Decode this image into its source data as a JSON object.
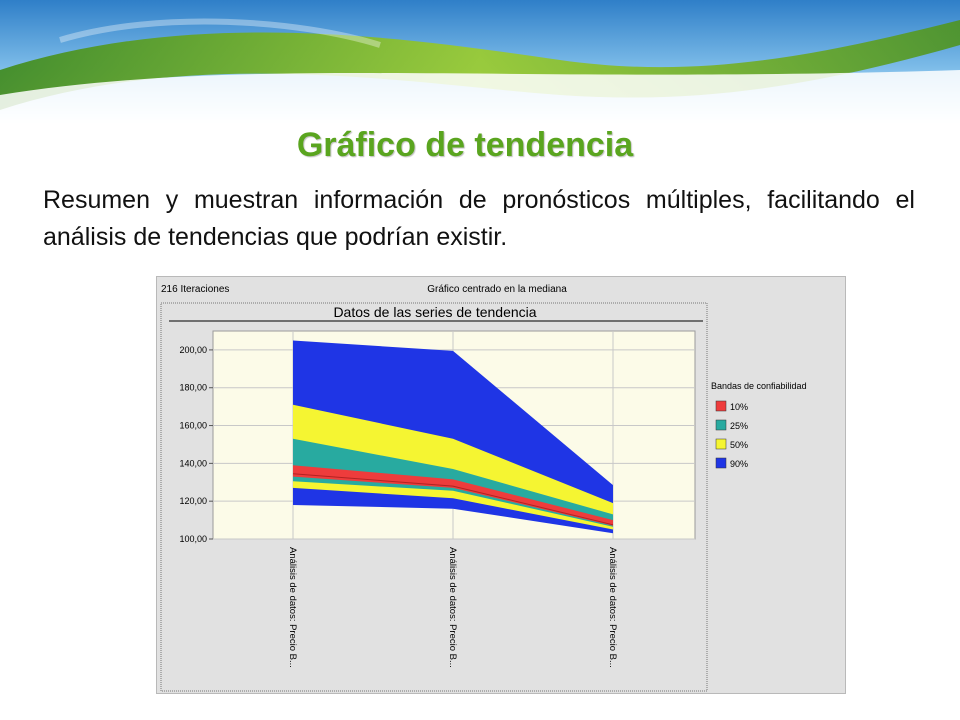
{
  "slide": {
    "title": "Gráfico de tendencia",
    "body": "Resumen y muestran información de pronósticos múltiples, facilitando el análisis de tendencias que podrían existir."
  },
  "colors": {
    "title_green": "#5aa51f",
    "band_90": "#1f35e5",
    "band_50": "#f5f532",
    "band_25": "#28aaa0",
    "band_10": "#ee3c3c",
    "plot_bg": "#fcfbe8"
  },
  "chart_window": {
    "iterations": "216 Iteraciones",
    "centering": "Gráfico centrado en la mediana"
  },
  "chart_data": {
    "type": "area",
    "title": "Datos de las series de tendencia",
    "xlabel": "",
    "ylabel": "",
    "categories": [
      "Análisis de datos: Precio B...",
      "Análisis de datos: Precio B...",
      "Análisis de datos: Precio B..."
    ],
    "ylim": [
      100,
      210
    ],
    "yticks": [
      "100,00",
      "120,00",
      "140,00",
      "160,00",
      "180,00",
      "200,00"
    ],
    "grid": true,
    "legend_title": "Bandas de confiabilidad",
    "legend_position": "right",
    "median": [
      134.5,
      128.0,
      107.5
    ],
    "bands": [
      {
        "name": "90%",
        "low": [
          118,
          116,
          103
        ],
        "high": [
          205,
          199.5,
          128.5
        ]
      },
      {
        "name": "50%",
        "low": [
          127,
          121.5,
          105
        ],
        "high": [
          171,
          153,
          119
        ]
      },
      {
        "name": "25%",
        "low": [
          130.5,
          125.5,
          106.5
        ],
        "high": [
          153,
          137,
          113
        ]
      },
      {
        "name": "10%",
        "low": [
          133,
          127,
          107
        ],
        "high": [
          139,
          131.5,
          110
        ]
      }
    ],
    "legend": [
      "10%",
      "25%",
      "50%",
      "90%"
    ]
  }
}
